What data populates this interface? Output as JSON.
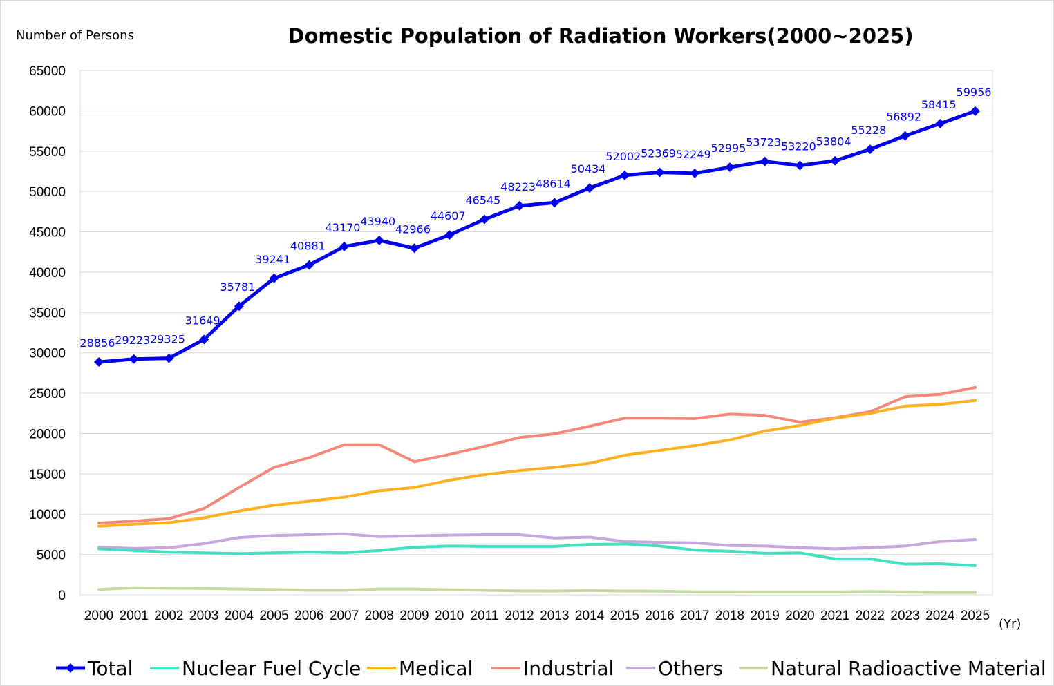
{
  "chart_data": {
    "type": "line",
    "title": "Domestic Population of Radiation Workers(2000~2025)",
    "ylabel": "Number of Persons",
    "xlabel": "(Yr)",
    "ylim": [
      0,
      65000
    ],
    "yticks": [
      0,
      5000,
      10000,
      15000,
      20000,
      25000,
      30000,
      35000,
      40000,
      45000,
      50000,
      55000,
      60000,
      65000
    ],
    "grid": true,
    "legend_position": "bottom",
    "categories": [
      "2000",
      "2001",
      "2002",
      "2003",
      "2004",
      "2005",
      "2006",
      "2007",
      "2008",
      "2009",
      "2010",
      "2011",
      "2012",
      "2013",
      "2014",
      "2015",
      "2016",
      "2017",
      "2018",
      "2019",
      "2020",
      "2021",
      "2022",
      "2023",
      "2024",
      "2025"
    ],
    "series": [
      {
        "name": "Total",
        "color": "#0000ee",
        "marker": "diamond",
        "labels": true,
        "values": [
          28856,
          29223,
          29325,
          31649,
          35781,
          39241,
          40881,
          43170,
          43940,
          42966,
          44607,
          46545,
          48223,
          48614,
          50434,
          52002,
          52369,
          52249,
          52995,
          53723,
          53220,
          53804,
          55228,
          56892,
          58415,
          59956
        ]
      },
      {
        "name": "Nuclear Fuel Cycle",
        "color": "#40e0c0",
        "values": [
          5700,
          5500,
          5300,
          5200,
          5100,
          5200,
          5300,
          5200,
          5500,
          5900,
          6050,
          6000,
          6000,
          6000,
          6250,
          6300,
          6050,
          5550,
          5400,
          5150,
          5200,
          4450,
          4450,
          3800,
          3850,
          3600
        ]
      },
      {
        "name": "Medical",
        "color": "#ffb020",
        "values": [
          8500,
          8750,
          8950,
          9550,
          10400,
          11100,
          11600,
          12100,
          12900,
          13300,
          14200,
          14900,
          15400,
          15800,
          16300,
          17300,
          17900,
          18500,
          19200,
          20300,
          21000,
          21900,
          22500,
          23400,
          23600,
          24100
        ]
      },
      {
        "name": "Industrial",
        "color": "#f4877a",
        "values": [
          8900,
          9150,
          9450,
          10700,
          13300,
          15800,
          17000,
          18600,
          18600,
          16500,
          17400,
          18400,
          19500,
          19950,
          20900,
          21900,
          21900,
          21850,
          22400,
          22250,
          21400,
          21950,
          22700,
          24550,
          24850,
          25700
        ]
      },
      {
        "name": "Others",
        "color": "#c6a6de",
        "values": [
          5900,
          5750,
          5850,
          6350,
          7100,
          7350,
          7450,
          7550,
          7200,
          7300,
          7400,
          7450,
          7450,
          7050,
          7150,
          6600,
          6500,
          6450,
          6100,
          6050,
          5850,
          5700,
          5850,
          6050,
          6600,
          6850
        ]
      },
      {
        "name": "Natural Radioactive Material",
        "color": "#c5d9a0",
        "values": [
          650,
          880,
          820,
          800,
          720,
          650,
          560,
          560,
          720,
          720,
          620,
          560,
          480,
          470,
          540,
          460,
          450,
          360,
          360,
          340,
          340,
          340,
          420,
          340,
          270,
          270
        ]
      }
    ]
  }
}
